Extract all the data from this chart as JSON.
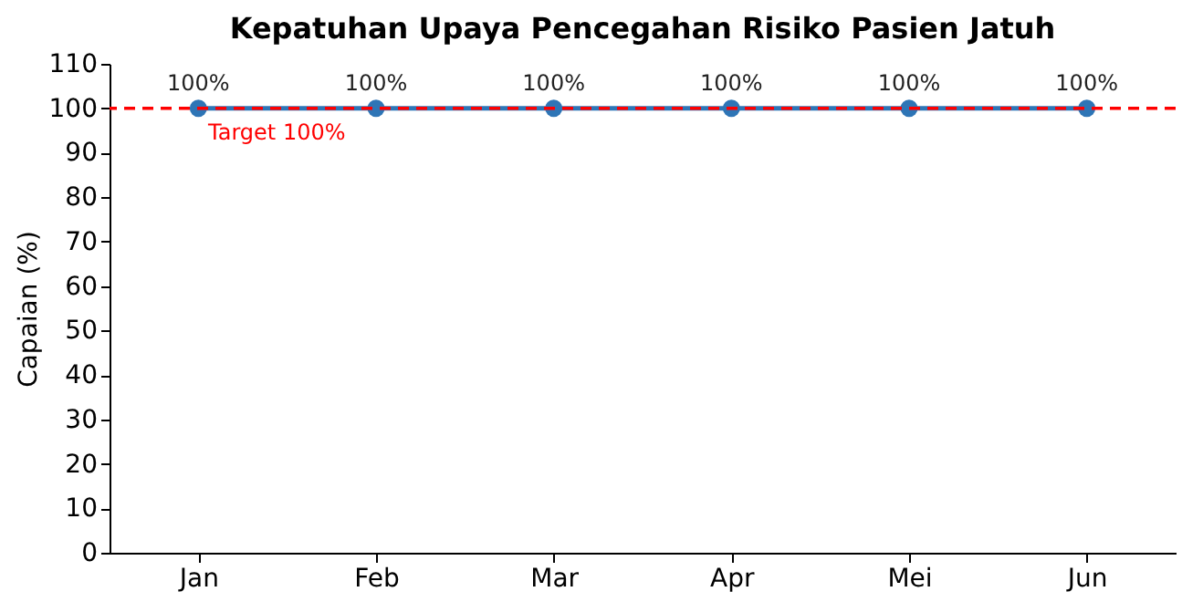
{
  "chart_data": {
    "type": "line",
    "title": "Kepatuhan Upaya Pencegahan Risiko Pasien Jatuh",
    "ylabel": "Capaian (%)",
    "categories": [
      "Jan",
      "Feb",
      "Mar",
      "Apr",
      "Mei",
      "Jun"
    ],
    "series": [
      {
        "color": "#2e75b6",
        "values": [
          100,
          100,
          100,
          100,
          100,
          100
        ],
        "value_labels": [
          "100%",
          "100%",
          "100%",
          "100%",
          "100%",
          "100%"
        ]
      }
    ],
    "ylim": [
      0,
      110
    ],
    "yticks": [
      0,
      10,
      20,
      30,
      40,
      50,
      60,
      70,
      80,
      90,
      100,
      110
    ],
    "ref_lines": [
      {
        "axis": "y",
        "value": 100,
        "label": "Target 100%",
        "color": "#ff0000",
        "line_style": "dashed"
      }
    ],
    "marker": "circle",
    "line_style": "solid",
    "grid": false
  }
}
